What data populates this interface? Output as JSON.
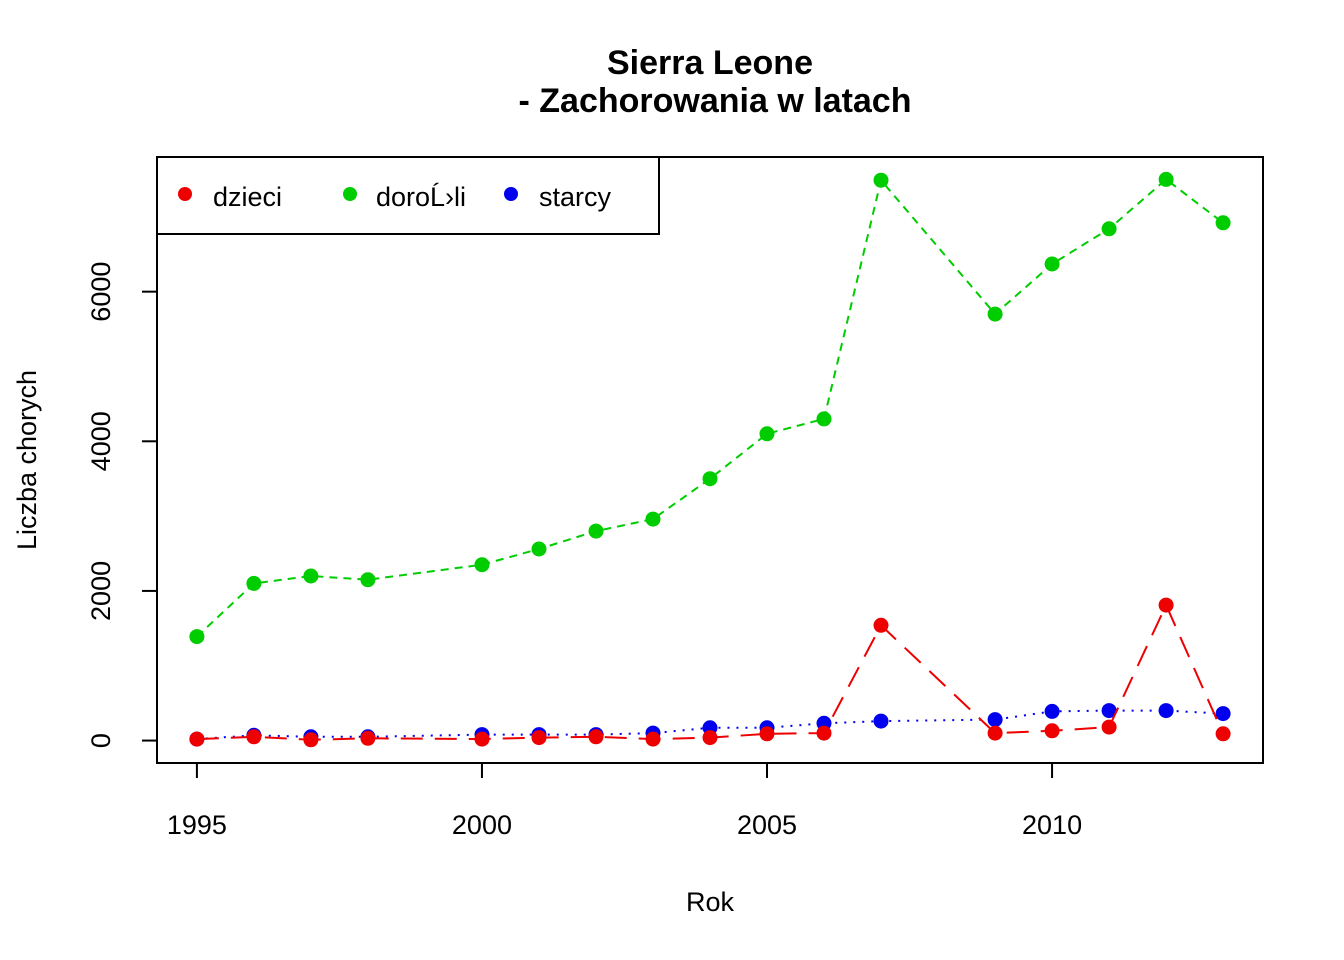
{
  "chart_data": {
    "type": "line",
    "title_line1": "Sierra Leone",
    "title_line2": "- Zachorowania w latach",
    "xlabel": "Rok",
    "ylabel": "Liczba chorych",
    "xlim": [
      1994.3,
      2013.7
    ],
    "ylim": [
      -300,
      7800
    ],
    "x_ticks": [
      1995,
      2000,
      2005,
      2010
    ],
    "y_ticks": [
      0,
      2000,
      4000,
      6000
    ],
    "legend_position": "top-left",
    "series": [
      {
        "name": "dzieci",
        "color": "#ee0000",
        "points": [
          [
            1995,
            20
          ],
          [
            1996,
            50
          ],
          [
            1997,
            10
          ],
          [
            1998,
            30
          ],
          [
            2000,
            20
          ],
          [
            2001,
            40
          ],
          [
            2002,
            50
          ],
          [
            2003,
            20
          ],
          [
            2004,
            40
          ],
          [
            2005,
            90
          ],
          [
            2006,
            100
          ],
          [
            2007,
            1540
          ],
          [
            2009,
            100
          ],
          [
            2010,
            130
          ],
          [
            2011,
            180
          ],
          [
            2012,
            1810
          ],
          [
            2013,
            90
          ]
        ]
      },
      {
        "name": "doroĹ›li",
        "color": "#00cd00",
        "points": [
          [
            1995,
            1390
          ],
          [
            1996,
            2100
          ],
          [
            1997,
            2200
          ],
          [
            1998,
            2150
          ],
          [
            2000,
            2350
          ],
          [
            2001,
            2560
          ],
          [
            2002,
            2800
          ],
          [
            2003,
            2960
          ],
          [
            2004,
            3500
          ],
          [
            2005,
            4100
          ],
          [
            2006,
            4300
          ],
          [
            2007,
            7490
          ],
          [
            2009,
            5700
          ],
          [
            2010,
            6370
          ],
          [
            2011,
            6840
          ],
          [
            2012,
            7500
          ],
          [
            2013,
            6920
          ]
        ]
      },
      {
        "name": "starcy",
        "color": "#0000ee",
        "points": [
          [
            1995,
            20
          ],
          [
            1996,
            70
          ],
          [
            1997,
            50
          ],
          [
            1998,
            50
          ],
          [
            2000,
            80
          ],
          [
            2001,
            80
          ],
          [
            2002,
            80
          ],
          [
            2003,
            100
          ],
          [
            2004,
            170
          ],
          [
            2005,
            170
          ],
          [
            2006,
            230
          ],
          [
            2007,
            260
          ],
          [
            2009,
            280
          ],
          [
            2010,
            390
          ],
          [
            2011,
            400
          ],
          [
            2012,
            400
          ],
          [
            2013,
            360
          ]
        ]
      }
    ]
  }
}
